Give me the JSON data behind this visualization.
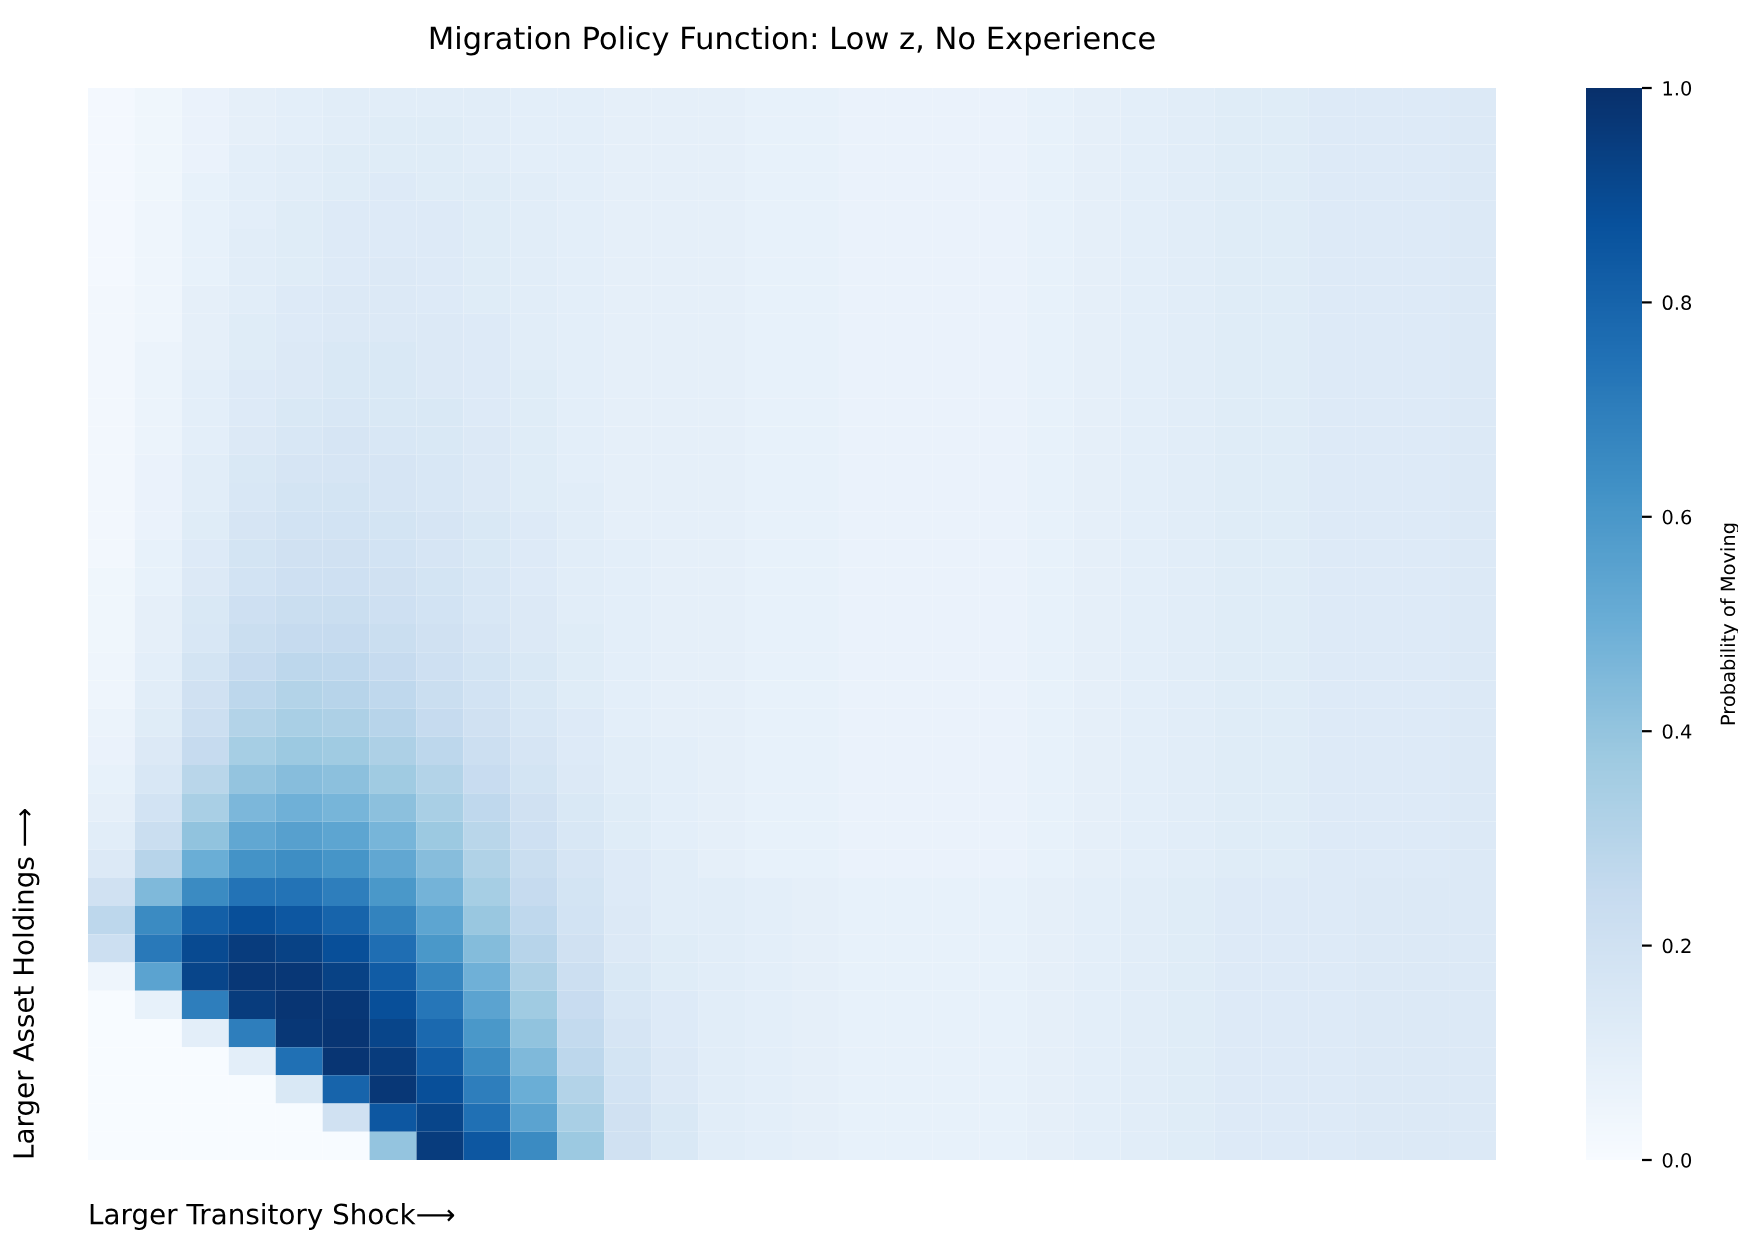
{
  "chart_data": {
    "type": "heatmap",
    "title": "Migration Policy Function: Low z, No Experience",
    "xlabel": "Larger Transitory Shock⟶",
    "ylabel": "Larger Asset Holdings ⟶",
    "clabel": "Probability of Moving",
    "tick_labels": false,
    "grid": false,
    "categories": [
      null,
      null,
      null,
      null,
      null,
      null,
      null,
      null,
      null,
      null,
      null,
      null,
      null,
      null,
      null,
      null,
      null,
      null,
      null,
      null,
      null,
      null,
      null,
      null,
      null,
      null,
      null,
      null,
      null,
      null
    ],
    "y_categories": [
      null,
      null,
      null,
      null,
      null,
      null,
      null,
      null,
      null,
      null,
      null,
      null,
      null,
      null,
      null,
      null,
      null,
      null,
      null,
      null,
      null,
      null,
      null,
      null,
      null,
      null,
      null,
      null,
      null,
      null,
      null,
      null,
      null,
      null,
      null,
      null,
      null,
      null
    ],
    "clim": [
      0,
      1
    ],
    "cticks": [
      {
        "value": 0,
        "label": "0.0"
      },
      {
        "value": 0.2,
        "label": "0.2"
      },
      {
        "value": 0.4,
        "label": "0.4"
      },
      {
        "value": 0.6,
        "label": "0.6"
      },
      {
        "value": 0.8,
        "label": "0.8"
      },
      {
        "value": 1,
        "label": "1.0"
      }
    ],
    "cells": [
      [
        0.02,
        0.04,
        0.07,
        0.09,
        0.1,
        0.11,
        0.11,
        0.11,
        0.11,
        0.1,
        0.1,
        0.09,
        0.09,
        0.09,
        0.08,
        0.08,
        0.07,
        0.07,
        0.07,
        0.07,
        0.08,
        0.09,
        0.1,
        0.11,
        0.12,
        0.12,
        0.13,
        0.13,
        0.13,
        0.14
      ],
      [
        0.02,
        0.04,
        0.07,
        0.09,
        0.1,
        0.11,
        0.12,
        0.12,
        0.11,
        0.1,
        0.1,
        0.09,
        0.09,
        0.09,
        0.08,
        0.08,
        0.07,
        0.07,
        0.07,
        0.07,
        0.08,
        0.09,
        0.1,
        0.11,
        0.12,
        0.12,
        0.13,
        0.13,
        0.13,
        0.14
      ],
      [
        0.02,
        0.04,
        0.07,
        0.1,
        0.11,
        0.12,
        0.12,
        0.12,
        0.11,
        0.1,
        0.1,
        0.09,
        0.09,
        0.09,
        0.08,
        0.08,
        0.07,
        0.07,
        0.07,
        0.07,
        0.08,
        0.09,
        0.1,
        0.11,
        0.12,
        0.12,
        0.13,
        0.13,
        0.13,
        0.14
      ],
      [
        0.02,
        0.04,
        0.08,
        0.1,
        0.11,
        0.12,
        0.13,
        0.12,
        0.12,
        0.11,
        0.1,
        0.09,
        0.09,
        0.09,
        0.08,
        0.08,
        0.07,
        0.07,
        0.07,
        0.07,
        0.08,
        0.09,
        0.1,
        0.11,
        0.12,
        0.12,
        0.13,
        0.13,
        0.13,
        0.14
      ],
      [
        0.02,
        0.05,
        0.08,
        0.1,
        0.12,
        0.13,
        0.13,
        0.13,
        0.12,
        0.11,
        0.1,
        0.09,
        0.09,
        0.09,
        0.08,
        0.08,
        0.07,
        0.07,
        0.07,
        0.07,
        0.08,
        0.09,
        0.1,
        0.11,
        0.12,
        0.12,
        0.13,
        0.13,
        0.13,
        0.14
      ],
      [
        0.02,
        0.05,
        0.08,
        0.11,
        0.12,
        0.13,
        0.13,
        0.13,
        0.12,
        0.11,
        0.1,
        0.09,
        0.09,
        0.09,
        0.08,
        0.08,
        0.07,
        0.07,
        0.07,
        0.07,
        0.08,
        0.09,
        0.1,
        0.11,
        0.12,
        0.12,
        0.13,
        0.13,
        0.13,
        0.14
      ],
      [
        0.02,
        0.05,
        0.08,
        0.11,
        0.12,
        0.13,
        0.14,
        0.13,
        0.12,
        0.11,
        0.1,
        0.09,
        0.09,
        0.09,
        0.08,
        0.08,
        0.07,
        0.07,
        0.07,
        0.07,
        0.08,
        0.09,
        0.1,
        0.11,
        0.12,
        0.12,
        0.13,
        0.13,
        0.13,
        0.14
      ],
      [
        0.03,
        0.05,
        0.09,
        0.11,
        0.13,
        0.14,
        0.14,
        0.13,
        0.12,
        0.11,
        0.1,
        0.09,
        0.09,
        0.09,
        0.08,
        0.08,
        0.07,
        0.07,
        0.07,
        0.07,
        0.08,
        0.09,
        0.1,
        0.11,
        0.12,
        0.12,
        0.13,
        0.13,
        0.13,
        0.14
      ],
      [
        0.03,
        0.05,
        0.09,
        0.12,
        0.13,
        0.14,
        0.14,
        0.14,
        0.13,
        0.11,
        0.1,
        0.09,
        0.09,
        0.09,
        0.08,
        0.08,
        0.07,
        0.07,
        0.07,
        0.07,
        0.08,
        0.09,
        0.1,
        0.11,
        0.12,
        0.12,
        0.13,
        0.13,
        0.13,
        0.14
      ],
      [
        0.03,
        0.06,
        0.09,
        0.12,
        0.14,
        0.15,
        0.15,
        0.14,
        0.13,
        0.11,
        0.1,
        0.09,
        0.09,
        0.09,
        0.08,
        0.08,
        0.07,
        0.07,
        0.07,
        0.07,
        0.08,
        0.09,
        0.1,
        0.11,
        0.12,
        0.12,
        0.13,
        0.13,
        0.13,
        0.14
      ],
      [
        0.03,
        0.06,
        0.1,
        0.13,
        0.14,
        0.15,
        0.15,
        0.14,
        0.13,
        0.12,
        0.1,
        0.09,
        0.09,
        0.09,
        0.08,
        0.08,
        0.07,
        0.07,
        0.07,
        0.07,
        0.08,
        0.09,
        0.1,
        0.11,
        0.12,
        0.12,
        0.13,
        0.13,
        0.13,
        0.14
      ],
      [
        0.03,
        0.06,
        0.1,
        0.13,
        0.15,
        0.16,
        0.15,
        0.15,
        0.13,
        0.12,
        0.1,
        0.09,
        0.09,
        0.09,
        0.08,
        0.08,
        0.07,
        0.07,
        0.07,
        0.07,
        0.08,
        0.09,
        0.1,
        0.11,
        0.12,
        0.12,
        0.13,
        0.13,
        0.13,
        0.14
      ],
      [
        0.03,
        0.06,
        0.1,
        0.14,
        0.16,
        0.17,
        0.16,
        0.15,
        0.14,
        0.12,
        0.1,
        0.09,
        0.09,
        0.09,
        0.08,
        0.08,
        0.07,
        0.07,
        0.07,
        0.07,
        0.08,
        0.09,
        0.1,
        0.11,
        0.12,
        0.12,
        0.13,
        0.13,
        0.13,
        0.14
      ],
      [
        0.03,
        0.07,
        0.11,
        0.15,
        0.17,
        0.17,
        0.17,
        0.16,
        0.14,
        0.12,
        0.1,
        0.09,
        0.09,
        0.09,
        0.08,
        0.08,
        0.07,
        0.07,
        0.07,
        0.07,
        0.08,
        0.09,
        0.1,
        0.11,
        0.12,
        0.12,
        0.13,
        0.13,
        0.13,
        0.14
      ],
      [
        0.03,
        0.07,
        0.11,
        0.16,
        0.18,
        0.18,
        0.17,
        0.16,
        0.14,
        0.12,
        0.11,
        0.09,
        0.09,
        0.09,
        0.08,
        0.08,
        0.07,
        0.07,
        0.07,
        0.07,
        0.08,
        0.09,
        0.1,
        0.11,
        0.12,
        0.12,
        0.13,
        0.13,
        0.13,
        0.14
      ],
      [
        0.03,
        0.07,
        0.12,
        0.17,
        0.19,
        0.19,
        0.18,
        0.17,
        0.15,
        0.13,
        0.11,
        0.09,
        0.09,
        0.09,
        0.08,
        0.08,
        0.07,
        0.07,
        0.07,
        0.07,
        0.08,
        0.09,
        0.1,
        0.11,
        0.12,
        0.12,
        0.13,
        0.13,
        0.13,
        0.14
      ],
      [
        0.03,
        0.08,
        0.13,
        0.18,
        0.2,
        0.2,
        0.19,
        0.17,
        0.15,
        0.13,
        0.11,
        0.1,
        0.09,
        0.09,
        0.08,
        0.08,
        0.07,
        0.07,
        0.07,
        0.07,
        0.08,
        0.09,
        0.1,
        0.11,
        0.12,
        0.12,
        0.13,
        0.13,
        0.13,
        0.14
      ],
      [
        0.04,
        0.08,
        0.14,
        0.19,
        0.21,
        0.21,
        0.2,
        0.18,
        0.16,
        0.13,
        0.11,
        0.1,
        0.09,
        0.09,
        0.08,
        0.08,
        0.07,
        0.07,
        0.07,
        0.07,
        0.08,
        0.09,
        0.1,
        0.11,
        0.12,
        0.12,
        0.13,
        0.13,
        0.13,
        0.14
      ],
      [
        0.04,
        0.09,
        0.15,
        0.21,
        0.23,
        0.23,
        0.21,
        0.19,
        0.16,
        0.14,
        0.11,
        0.1,
        0.09,
        0.09,
        0.08,
        0.08,
        0.07,
        0.07,
        0.07,
        0.07,
        0.08,
        0.09,
        0.1,
        0.11,
        0.12,
        0.12,
        0.13,
        0.13,
        0.13,
        0.14
      ],
      [
        0.04,
        0.09,
        0.16,
        0.23,
        0.25,
        0.25,
        0.23,
        0.2,
        0.17,
        0.14,
        0.12,
        0.1,
        0.09,
        0.09,
        0.08,
        0.08,
        0.07,
        0.07,
        0.07,
        0.07,
        0.08,
        0.09,
        0.1,
        0.11,
        0.12,
        0.12,
        0.13,
        0.13,
        0.13,
        0.14
      ],
      [
        0.05,
        0.1,
        0.18,
        0.25,
        0.28,
        0.27,
        0.25,
        0.21,
        0.18,
        0.15,
        0.12,
        0.1,
        0.09,
        0.09,
        0.08,
        0.08,
        0.07,
        0.07,
        0.07,
        0.07,
        0.08,
        0.09,
        0.1,
        0.11,
        0.12,
        0.12,
        0.13,
        0.13,
        0.13,
        0.14
      ],
      [
        0.05,
        0.11,
        0.2,
        0.28,
        0.31,
        0.3,
        0.27,
        0.23,
        0.19,
        0.15,
        0.12,
        0.1,
        0.09,
        0.09,
        0.08,
        0.08,
        0.07,
        0.07,
        0.07,
        0.07,
        0.08,
        0.09,
        0.1,
        0.11,
        0.12,
        0.12,
        0.13,
        0.13,
        0.13,
        0.14
      ],
      [
        0.06,
        0.12,
        0.22,
        0.31,
        0.34,
        0.33,
        0.3,
        0.25,
        0.2,
        0.16,
        0.13,
        0.1,
        0.09,
        0.09,
        0.08,
        0.08,
        0.07,
        0.07,
        0.07,
        0.07,
        0.08,
        0.09,
        0.1,
        0.11,
        0.12,
        0.12,
        0.13,
        0.13,
        0.13,
        0.14
      ],
      [
        0.07,
        0.14,
        0.25,
        0.35,
        0.38,
        0.37,
        0.33,
        0.28,
        0.22,
        0.17,
        0.13,
        0.11,
        0.1,
        0.09,
        0.08,
        0.08,
        0.07,
        0.07,
        0.07,
        0.07,
        0.08,
        0.09,
        0.1,
        0.11,
        0.12,
        0.12,
        0.13,
        0.13,
        0.13,
        0.14
      ],
      [
        0.08,
        0.16,
        0.29,
        0.4,
        0.43,
        0.42,
        0.37,
        0.31,
        0.24,
        0.18,
        0.14,
        0.11,
        0.1,
        0.09,
        0.08,
        0.08,
        0.07,
        0.07,
        0.07,
        0.07,
        0.08,
        0.09,
        0.1,
        0.11,
        0.12,
        0.12,
        0.13,
        0.13,
        0.13,
        0.14
      ],
      [
        0.09,
        0.19,
        0.34,
        0.46,
        0.49,
        0.47,
        0.42,
        0.34,
        0.27,
        0.2,
        0.15,
        0.12,
        0.1,
        0.09,
        0.08,
        0.08,
        0.07,
        0.07,
        0.07,
        0.07,
        0.08,
        0.09,
        0.1,
        0.11,
        0.12,
        0.12,
        0.13,
        0.13,
        0.13,
        0.14
      ],
      [
        0.11,
        0.23,
        0.41,
        0.53,
        0.56,
        0.54,
        0.47,
        0.38,
        0.29,
        0.21,
        0.16,
        0.12,
        0.1,
        0.09,
        0.08,
        0.08,
        0.07,
        0.07,
        0.07,
        0.07,
        0.08,
        0.09,
        0.1,
        0.11,
        0.12,
        0.12,
        0.13,
        0.13,
        0.13,
        0.14
      ],
      [
        0.14,
        0.3,
        0.5,
        0.62,
        0.64,
        0.61,
        0.53,
        0.43,
        0.32,
        0.23,
        0.17,
        0.13,
        0.11,
        0.09,
        0.08,
        0.08,
        0.07,
        0.07,
        0.07,
        0.07,
        0.08,
        0.09,
        0.1,
        0.11,
        0.12,
        0.12,
        0.13,
        0.13,
        0.13,
        0.14
      ],
      [
        0.2,
        0.45,
        0.65,
        0.74,
        0.74,
        0.7,
        0.6,
        0.48,
        0.35,
        0.25,
        0.18,
        0.13,
        0.11,
        0.11,
        0.1,
        0.09,
        0.08,
        0.08,
        0.08,
        0.08,
        0.09,
        0.1,
        0.11,
        0.12,
        0.13,
        0.13,
        0.13,
        0.14,
        0.14,
        0.14
      ],
      [
        0.28,
        0.65,
        0.82,
        0.88,
        0.85,
        0.8,
        0.68,
        0.54,
        0.39,
        0.27,
        0.19,
        0.14,
        0.11,
        0.11,
        0.1,
        0.09,
        0.08,
        0.08,
        0.08,
        0.08,
        0.09,
        0.1,
        0.11,
        0.12,
        0.13,
        0.13,
        0.13,
        0.14,
        0.14,
        0.14
      ],
      [
        0.22,
        0.72,
        0.9,
        0.95,
        0.93,
        0.88,
        0.76,
        0.6,
        0.44,
        0.3,
        0.2,
        0.14,
        0.12,
        0.11,
        0.1,
        0.09,
        0.08,
        0.08,
        0.08,
        0.08,
        0.09,
        0.1,
        0.11,
        0.12,
        0.13,
        0.13,
        0.13,
        0.14,
        0.14,
        0.14
      ],
      [
        0.05,
        0.55,
        0.92,
        0.97,
        0.97,
        0.93,
        0.83,
        0.67,
        0.49,
        0.33,
        0.22,
        0.15,
        0.12,
        0.11,
        0.1,
        0.09,
        0.08,
        0.08,
        0.08,
        0.08,
        0.09,
        0.1,
        0.11,
        0.12,
        0.13,
        0.13,
        0.13,
        0.14,
        0.14,
        0.14
      ],
      [
        0,
        0.08,
        0.7,
        0.95,
        0.98,
        0.97,
        0.88,
        0.73,
        0.55,
        0.37,
        0.24,
        0.16,
        0.13,
        0.11,
        0.1,
        0.09,
        0.08,
        0.08,
        0.08,
        0.08,
        0.09,
        0.1,
        0.11,
        0.12,
        0.13,
        0.13,
        0.13,
        0.14,
        0.14,
        0.14
      ],
      [
        0,
        0,
        0.1,
        0.7,
        0.97,
        0.98,
        0.92,
        0.78,
        0.6,
        0.41,
        0.26,
        0.17,
        0.13,
        0.11,
        0.1,
        0.09,
        0.08,
        0.08,
        0.08,
        0.08,
        0.09,
        0.1,
        0.11,
        0.12,
        0.13,
        0.13,
        0.13,
        0.14,
        0.14,
        0.14
      ],
      [
        0,
        0,
        0,
        0.1,
        0.75,
        0.98,
        0.95,
        0.83,
        0.65,
        0.45,
        0.28,
        0.18,
        0.14,
        0.11,
        0.1,
        0.09,
        0.08,
        0.08,
        0.08,
        0.08,
        0.09,
        0.1,
        0.11,
        0.12,
        0.13,
        0.13,
        0.13,
        0.14,
        0.14,
        0.14
      ],
      [
        0,
        0,
        0,
        0,
        0.15,
        0.8,
        0.97,
        0.88,
        0.7,
        0.5,
        0.31,
        0.19,
        0.14,
        0.11,
        0.1,
        0.09,
        0.08,
        0.08,
        0.08,
        0.08,
        0.09,
        0.1,
        0.11,
        0.12,
        0.13,
        0.13,
        0.13,
        0.14,
        0.14,
        0.14
      ],
      [
        0,
        0,
        0,
        0,
        0,
        0.2,
        0.85,
        0.92,
        0.75,
        0.55,
        0.34,
        0.2,
        0.15,
        0.11,
        0.1,
        0.09,
        0.08,
        0.08,
        0.08,
        0.08,
        0.09,
        0.1,
        0.11,
        0.12,
        0.13,
        0.13,
        0.13,
        0.14,
        0.14,
        0.14
      ],
      [
        0,
        0,
        0,
        0,
        0,
        0,
        0.4,
        0.95,
        0.85,
        0.65,
        0.38,
        0.2,
        0.15,
        0.11,
        0.1,
        0.09,
        0.08,
        0.08,
        0.08,
        0.08,
        0.09,
        0.1,
        0.11,
        0.12,
        0.13,
        0.13,
        0.13,
        0.14,
        0.14,
        0.14
      ]
    ]
  }
}
